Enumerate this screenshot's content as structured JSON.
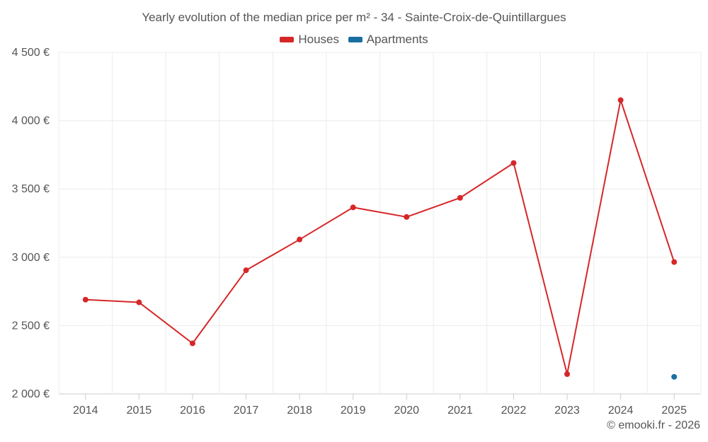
{
  "chart_data": {
    "type": "line",
    "title": "Yearly evolution of the median price per m² - 34 - Sainte-Croix-de-Quintillargues",
    "xlabel": "",
    "ylabel": "",
    "categories": [
      "2014",
      "2015",
      "2016",
      "2017",
      "2018",
      "2019",
      "2020",
      "2021",
      "2022",
      "2023",
      "2024",
      "2025"
    ],
    "ylim": [
      2000,
      4500
    ],
    "yticks": [
      2000,
      2500,
      3000,
      3500,
      4000,
      4500
    ],
    "ytick_labels": [
      "2 000 €",
      "2 500 €",
      "3 000 €",
      "3 500 €",
      "4 000 €",
      "4 500 €"
    ],
    "grid": true,
    "legend_position": "top-center",
    "series": [
      {
        "name": "Houses",
        "color": "#d62728",
        "values": [
          2690,
          2670,
          2370,
          2905,
          3130,
          3365,
          3295,
          3435,
          3690,
          2145,
          4150,
          2965
        ]
      },
      {
        "name": "Apartments",
        "color": "#1a6fa0",
        "values": [
          null,
          null,
          null,
          null,
          null,
          null,
          null,
          null,
          null,
          null,
          null,
          2125
        ]
      }
    ],
    "credit": "© emooki.fr - 2026"
  }
}
